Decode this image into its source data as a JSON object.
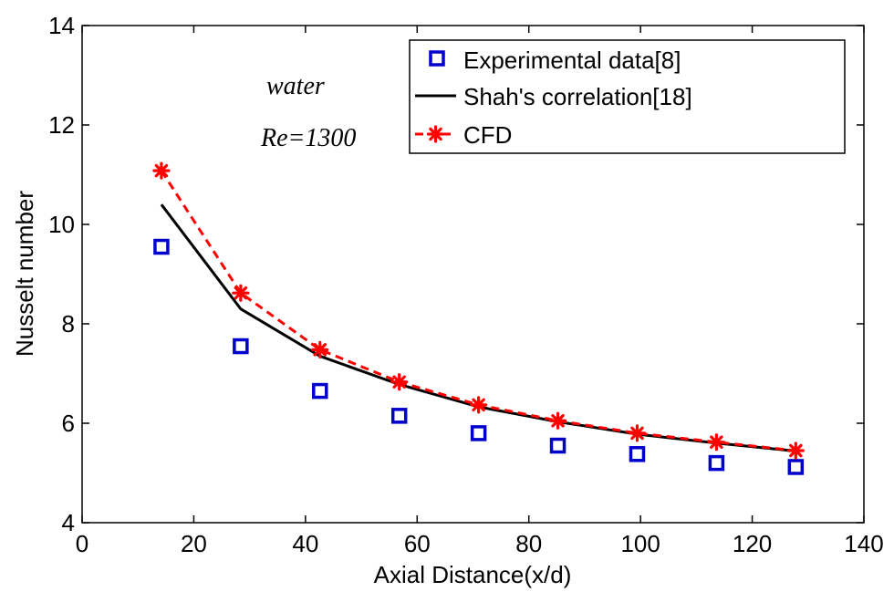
{
  "chart_data": {
    "type": "line",
    "xlabel": "Axial Distance(x/d)",
    "ylabel": "Nusselt number",
    "xlim": [
      0,
      140
    ],
    "ylim": [
      4,
      14
    ],
    "xticks": [
      0,
      20,
      40,
      60,
      80,
      100,
      120,
      140
    ],
    "yticks": [
      4,
      6,
      8,
      10,
      12,
      14
    ],
    "grid": false,
    "legend_position": "top-right",
    "annotations": [
      "water",
      "Re=1300"
    ],
    "series": [
      {
        "name": "Experimental data[8]",
        "style": "markers-square",
        "color": "#0000cc",
        "x": [
          14.2,
          28.4,
          42.6,
          56.8,
          71.0,
          85.2,
          99.4,
          113.6,
          127.8
        ],
        "y": [
          9.55,
          7.55,
          6.65,
          6.15,
          5.8,
          5.55,
          5.38,
          5.2,
          5.12
        ]
      },
      {
        "name": "Shah's correlation[18]",
        "style": "solid-line",
        "color": "#000000",
        "x": [
          14.2,
          28.4,
          42.6,
          56.8,
          71.0,
          85.2,
          99.4,
          113.6,
          127.8
        ],
        "y": [
          10.4,
          8.3,
          7.35,
          6.78,
          6.33,
          6.03,
          5.78,
          5.6,
          5.44
        ]
      },
      {
        "name": "CFD",
        "style": "dashed-line-star",
        "color": "#ff0000",
        "x": [
          14.2,
          28.4,
          42.6,
          56.8,
          71.0,
          85.2,
          99.4,
          113.6,
          127.8
        ],
        "y": [
          11.08,
          8.62,
          7.48,
          6.83,
          6.37,
          6.05,
          5.8,
          5.62,
          5.45
        ]
      }
    ]
  }
}
